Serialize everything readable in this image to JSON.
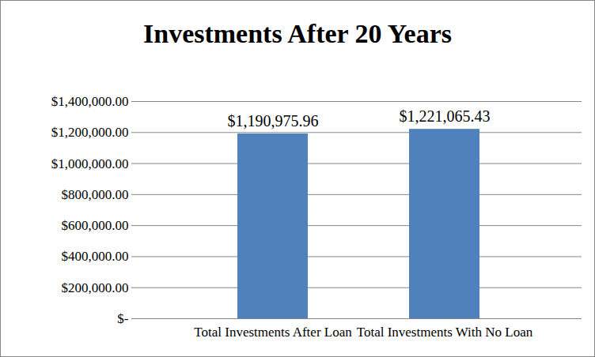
{
  "chart_data": {
    "type": "bar",
    "title": "Investments After 20 Years",
    "categories": [
      "Total Investments After Loan",
      "Total Investments With No Loan"
    ],
    "values": [
      1190975.96,
      1221065.43
    ],
    "value_labels": [
      "$1,190,975.96",
      "$1,221,065.43"
    ],
    "color": "#4f81bd",
    "ylim": [
      0,
      1400000
    ],
    "yticks": [
      {
        "value": 0,
        "label": "$-"
      },
      {
        "value": 200000,
        "label": "$200,000.00"
      },
      {
        "value": 400000,
        "label": "$400,000.00"
      },
      {
        "value": 600000,
        "label": "$600,000.00"
      },
      {
        "value": 800000,
        "label": "$800,000.00"
      },
      {
        "value": 1000000,
        "label": "$1,000,000.00"
      },
      {
        "value": 1200000,
        "label": "$1,200,000.00"
      },
      {
        "value": 1400000,
        "label": "$1,400,000.00"
      }
    ],
    "grid": true,
    "data_labels": true
  }
}
